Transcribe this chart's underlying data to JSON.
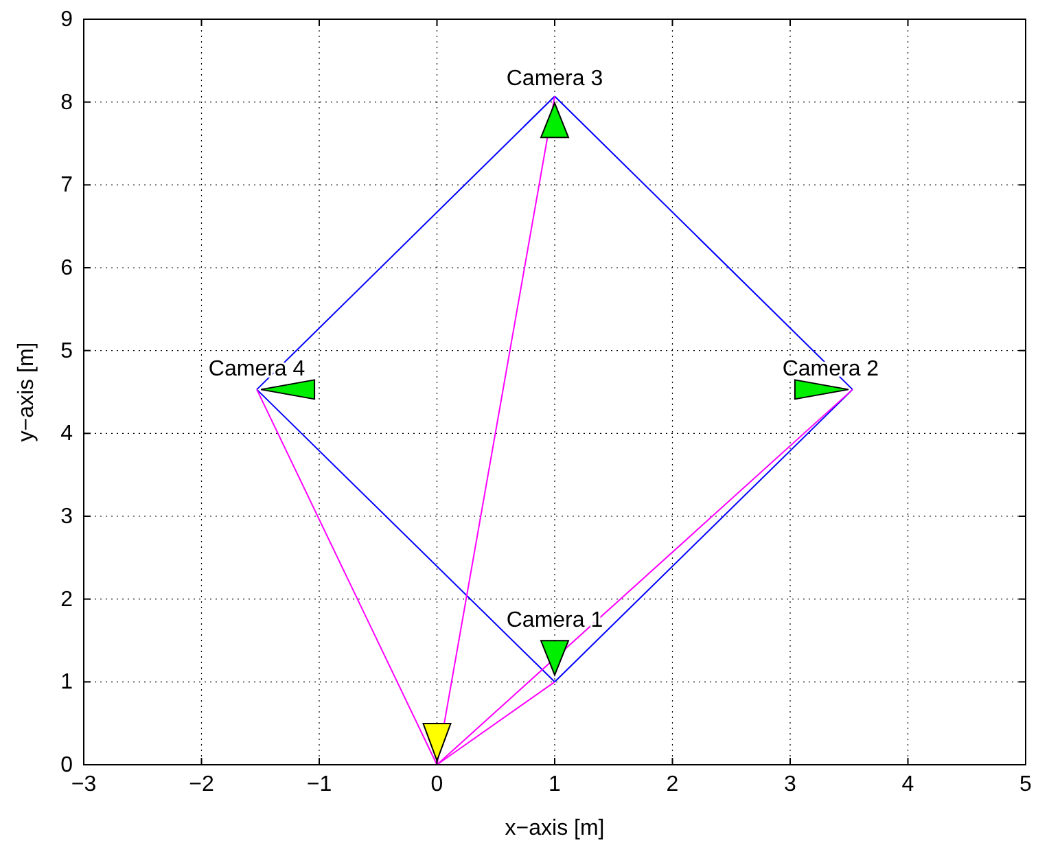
{
  "chart_data": {
    "type": "line",
    "xlabel": "x−axis [m]",
    "ylabel": "y−axis [m]",
    "xlim": [
      -3,
      5
    ],
    "xticks": [
      {
        "value": -3,
        "label": "−3"
      },
      {
        "value": -2,
        "label": "−2"
      },
      {
        "value": -1,
        "label": "−1"
      },
      0,
      1,
      2,
      3,
      4,
      5
    ],
    "ylim": [
      0,
      9
    ],
    "yticks": [
      0,
      1,
      2,
      3,
      4,
      5,
      6,
      7,
      8,
      9
    ],
    "grid": true,
    "marker": "none",
    "line_style": "solid",
    "series": [
      {
        "color": "#0000ff",
        "x": [
          1,
          3.53
        ],
        "values": [
          1,
          4.53
        ]
      },
      {
        "color": "#0000ff",
        "x": [
          1,
          3.53
        ],
        "values": [
          8.07,
          4.53
        ]
      },
      {
        "color": "#0000ff",
        "x": [
          -1.53,
          1
        ],
        "values": [
          4.53,
          8.07
        ]
      },
      {
        "color": "#0000ff",
        "x": [
          -1.53,
          1
        ],
        "values": [
          4.53,
          1
        ]
      },
      {
        "color": "#ff00ff",
        "x": [
          0,
          1
        ],
        "values": [
          0,
          1
        ]
      },
      {
        "color": "#ff00ff",
        "x": [
          0,
          3.53
        ],
        "values": [
          0,
          4.53
        ]
      },
      {
        "color": "#ff00ff",
        "x": [
          0,
          1
        ],
        "values": [
          0,
          8.07
        ]
      },
      {
        "color": "#ff00ff",
        "x": [
          0,
          -1.53
        ],
        "values": [
          0,
          4.53
        ]
      }
    ],
    "annotations": [
      {
        "text": "Camera 1",
        "x": 1,
        "y": 1
      },
      {
        "text": "Camera 2",
        "x": 3.53,
        "y": 4.53
      },
      {
        "text": "Camera 3",
        "x": 1,
        "y": 8.07
      },
      {
        "text": "Camera 4",
        "x": -1.53,
        "y": 4.53
      }
    ]
  }
}
